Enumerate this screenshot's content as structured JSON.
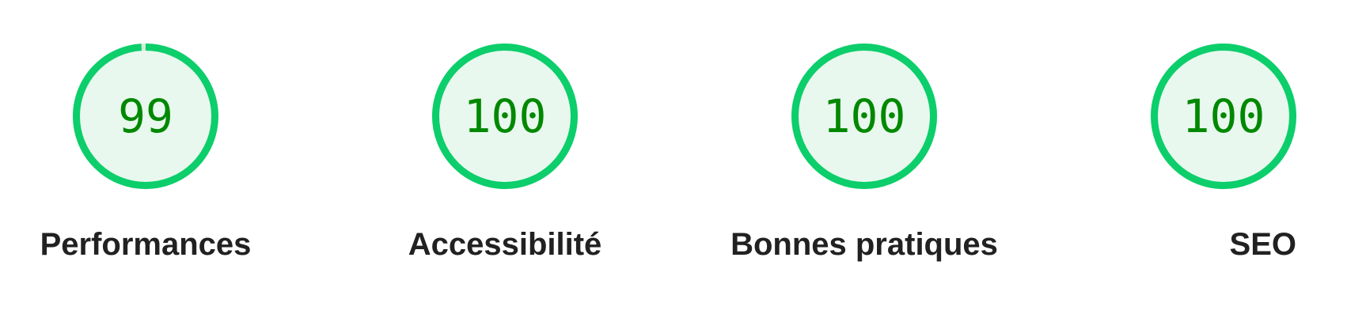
{
  "colors": {
    "pass_arc": "#0cce6b",
    "pass_fill": "#e8f8ee",
    "pass_text": "#008800",
    "label_text": "#212121"
  },
  "gauges": [
    {
      "label": "Performances",
      "score": "99",
      "fraction": 0.99,
      "status": "pass"
    },
    {
      "label": "Accessibilité",
      "score": "100",
      "fraction": 1.0,
      "status": "pass"
    },
    {
      "label": "Bonnes pratiques",
      "score": "100",
      "fraction": 1.0,
      "status": "pass"
    },
    {
      "label": "SEO",
      "score": "100",
      "fraction": 1.0,
      "status": "pass"
    }
  ]
}
